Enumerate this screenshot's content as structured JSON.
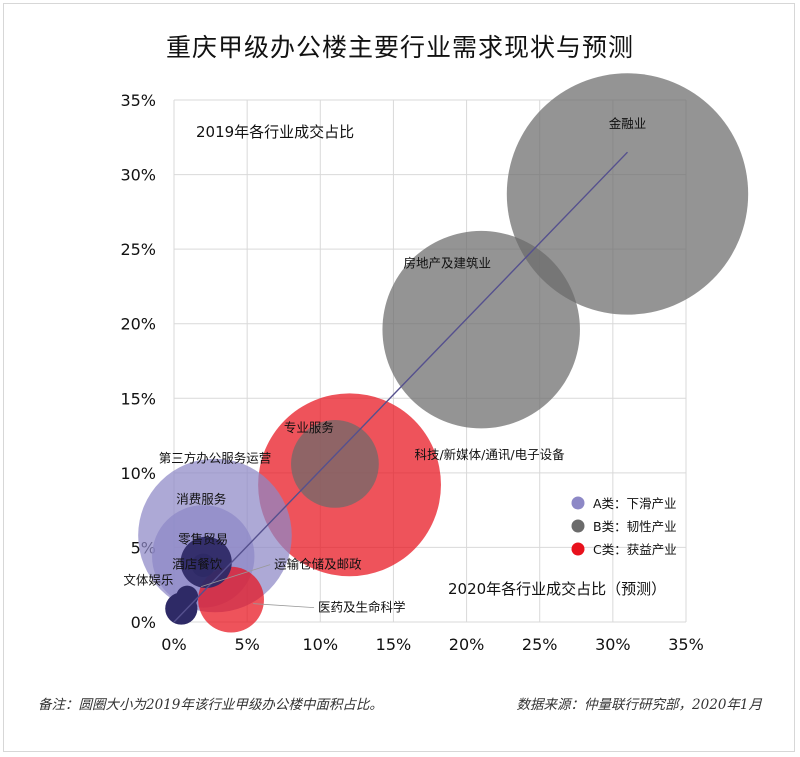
{
  "title": "重庆甲级办公楼主要行业需求现状与预测",
  "colors": {
    "category_a": "#8d88c6",
    "category_b": "#6b6b6b",
    "category_c": "#e8111c",
    "trend_line": "#55508e",
    "grid": "#d9d9d9"
  },
  "chart_data": {
    "type": "scatter",
    "subtype": "bubble",
    "y_axis_label": "2019年各行业成交占比",
    "x_axis_label": "2020年各行业成交占比（预测）",
    "xlim": [
      0,
      35
    ],
    "ylim": [
      0,
      35
    ],
    "x_ticks": [
      "0%",
      "5%",
      "10%",
      "15%",
      "20%",
      "25%",
      "30%",
      "35%"
    ],
    "y_ticks": [
      "0%",
      "5%",
      "10%",
      "15%",
      "20%",
      "25%",
      "30%",
      "35%"
    ],
    "grid": true,
    "legend": {
      "position": "right",
      "entries": [
        {
          "key": "A",
          "label": "A类：下滑产业"
        },
        {
          "key": "B",
          "label": "B类：韧性产业"
        },
        {
          "key": "C",
          "label": "C类：获益产业"
        }
      ]
    },
    "trend_line": {
      "from": [
        0,
        0
      ],
      "to": [
        31,
        31.5
      ]
    },
    "points": [
      {
        "label": "金融业",
        "category": "B",
        "x": 31.0,
        "y": 28.7,
        "size": 16.5
      },
      {
        "label": "房地产及建筑业",
        "category": "B",
        "x": 21.0,
        "y": 19.6,
        "size": 13.5
      },
      {
        "label": "专业服务",
        "category": "B",
        "x": 11.0,
        "y": 10.6,
        "size": 6.0
      },
      {
        "label": "科技/新媒体/通讯/电子设备",
        "category": "C",
        "x": 12.0,
        "y": 9.2,
        "size": 12.5
      },
      {
        "label": "第三方办公服务运营",
        "category": "A",
        "x": 2.8,
        "y": 5.8,
        "size": 10.5
      },
      {
        "label": "消费服务",
        "category": "A",
        "x": 2.0,
        "y": 4.4,
        "size": 7.0
      },
      {
        "label": "零售贸易",
        "category": "A",
        "x": 2.2,
        "y": 4.0,
        "size": 3.5
      },
      {
        "label": "酒店餐饮",
        "category": "A",
        "x": 2.0,
        "y": 3.8,
        "size": 1.6
      },
      {
        "label": "运输仓储及邮政",
        "category": "A",
        "x": 0.9,
        "y": 1.7,
        "size": 1.5
      },
      {
        "label": "医药及生命科学",
        "category": "C",
        "x": 3.9,
        "y": 1.5,
        "size": 4.5
      },
      {
        "label": "文体娱乐",
        "category": "A",
        "x": 0.5,
        "y": 0.9,
        "size": 2.2
      }
    ]
  },
  "footer": {
    "note": "备注：圆圈大小为2019年该行业甲级办公楼中面积占比。",
    "source": "数据来源：仲量联行研究部，2020年1月"
  }
}
